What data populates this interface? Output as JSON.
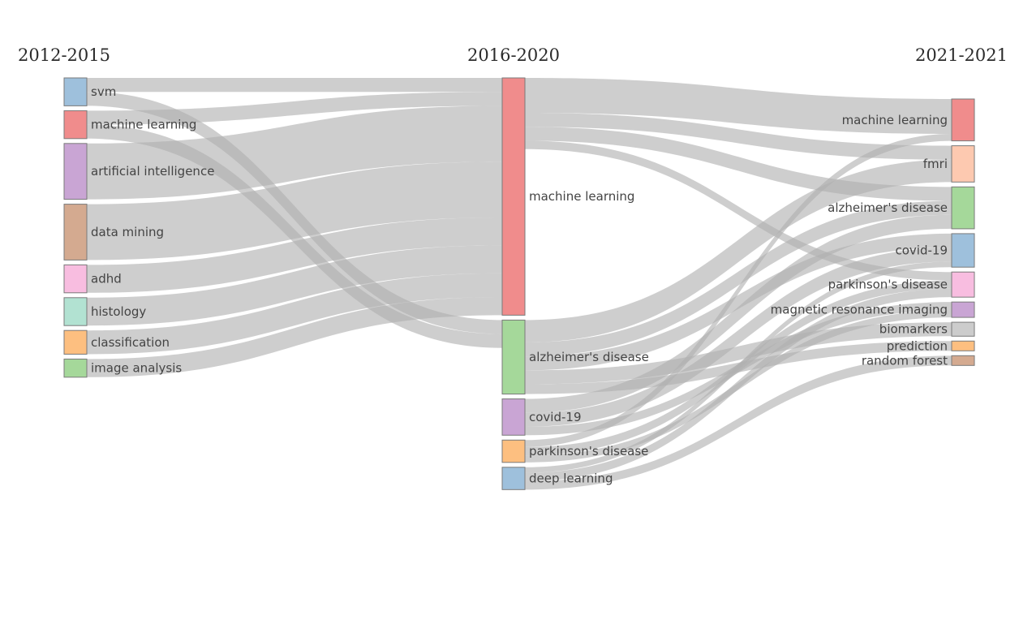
{
  "periods": [
    "2012-2015",
    "2016-2020",
    "2021-2021"
  ],
  "nodes": [
    {
      "id": "a_svm",
      "label": "svm",
      "col": 0,
      "color": "#9ec0dc"
    },
    {
      "id": "a_ml",
      "label": "machine learning",
      "col": 0,
      "color": "#f08c8c"
    },
    {
      "id": "a_ai",
      "label": "artificial intelligence",
      "col": 0,
      "color": "#c9a5d4"
    },
    {
      "id": "a_dm",
      "label": "data mining",
      "col": 0,
      "color": "#d4aa90"
    },
    {
      "id": "a_adhd",
      "label": "adhd",
      "col": 0,
      "color": "#f8bde0"
    },
    {
      "id": "a_hist",
      "label": "histology",
      "col": 0,
      "color": "#b2e2d2"
    },
    {
      "id": "a_class",
      "label": "classification",
      "col": 0,
      "color": "#fdbf80"
    },
    {
      "id": "a_img",
      "label": "image analysis",
      "col": 0,
      "color": "#a5d89a"
    },
    {
      "id": "b_ml",
      "label": "machine learning",
      "col": 1,
      "color": "#f08c8c"
    },
    {
      "id": "b_alz",
      "label": "alzheimer's disease",
      "col": 1,
      "color": "#a5d89a"
    },
    {
      "id": "b_covid",
      "label": "covid-19",
      "col": 1,
      "color": "#c9a5d4"
    },
    {
      "id": "b_park",
      "label": "parkinson's disease",
      "col": 1,
      "color": "#fdbf80"
    },
    {
      "id": "b_dl",
      "label": "deep learning",
      "col": 1,
      "color": "#9ec0dc"
    },
    {
      "id": "c_ml",
      "label": "machine learning",
      "col": 2,
      "color": "#f08c8c"
    },
    {
      "id": "c_fmri",
      "label": "fmri",
      "col": 2,
      "color": "#fdc9b0"
    },
    {
      "id": "c_alz",
      "label": "alzheimer's disease",
      "col": 2,
      "color": "#a5d89a"
    },
    {
      "id": "c_covid",
      "label": "covid-19",
      "col": 2,
      "color": "#9ec0dc"
    },
    {
      "id": "c_park",
      "label": "parkinson's disease",
      "col": 2,
      "color": "#f8bde0"
    },
    {
      "id": "c_mri",
      "label": "magnetic resonance imaging",
      "col": 2,
      "color": "#c9a5d4"
    },
    {
      "id": "c_bio",
      "label": "biomarkers",
      "col": 2,
      "color": "#cccccc"
    },
    {
      "id": "c_pred",
      "label": "prediction",
      "col": 2,
      "color": "#fdbf80"
    },
    {
      "id": "c_rf",
      "label": "random forest",
      "col": 2,
      "color": "#d4aa90"
    }
  ],
  "links": [
    {
      "source": "a_svm",
      "target": "b_ml",
      "value": 1
    },
    {
      "source": "a_svm",
      "target": "b_alz",
      "value": 1
    },
    {
      "source": "a_ml",
      "target": "b_ml",
      "value": 1
    },
    {
      "source": "a_ml",
      "target": "b_alz",
      "value": 1
    },
    {
      "source": "a_ai",
      "target": "b_ml",
      "value": 4
    },
    {
      "source": "a_dm",
      "target": "b_ml",
      "value": 4
    },
    {
      "source": "a_adhd",
      "target": "b_ml",
      "value": 2
    },
    {
      "source": "a_hist",
      "target": "b_ml",
      "value": 2
    },
    {
      "source": "a_class",
      "target": "b_ml",
      "value": 1.7
    },
    {
      "source": "a_img",
      "target": "b_ml",
      "value": 1.3
    },
    {
      "source": "b_ml",
      "target": "c_ml",
      "value": 2.5
    },
    {
      "source": "b_ml",
      "target": "c_fmri",
      "value": 1
    },
    {
      "source": "b_ml",
      "target": "c_alz",
      "value": 1
    },
    {
      "source": "b_ml",
      "target": "c_park",
      "value": 0.6
    },
    {
      "source": "b_alz",
      "target": "c_fmri",
      "value": 1.6
    },
    {
      "source": "b_alz",
      "target": "c_alz",
      "value": 1
    },
    {
      "source": "b_alz",
      "target": "c_covid",
      "value": 1
    },
    {
      "source": "b_alz",
      "target": "c_bio",
      "value": 1
    },
    {
      "source": "b_alz",
      "target": "c_pred",
      "value": 0.7
    },
    {
      "source": "b_covid",
      "target": "c_alz",
      "value": 1
    },
    {
      "source": "b_covid",
      "target": "c_covid",
      "value": 1
    },
    {
      "source": "b_covid",
      "target": "c_mri",
      "value": 0.6
    },
    {
      "source": "b_park",
      "target": "c_ml",
      "value": 0.5
    },
    {
      "source": "b_park",
      "target": "c_park",
      "value": 0.6
    },
    {
      "source": "b_park",
      "target": "c_mri",
      "value": 0.5
    },
    {
      "source": "b_dl",
      "target": "c_covid",
      "value": 0.4
    },
    {
      "source": "b_dl",
      "target": "c_park",
      "value": 0.6
    },
    {
      "source": "b_dl",
      "target": "c_rf",
      "value": 0.6
    }
  ]
}
